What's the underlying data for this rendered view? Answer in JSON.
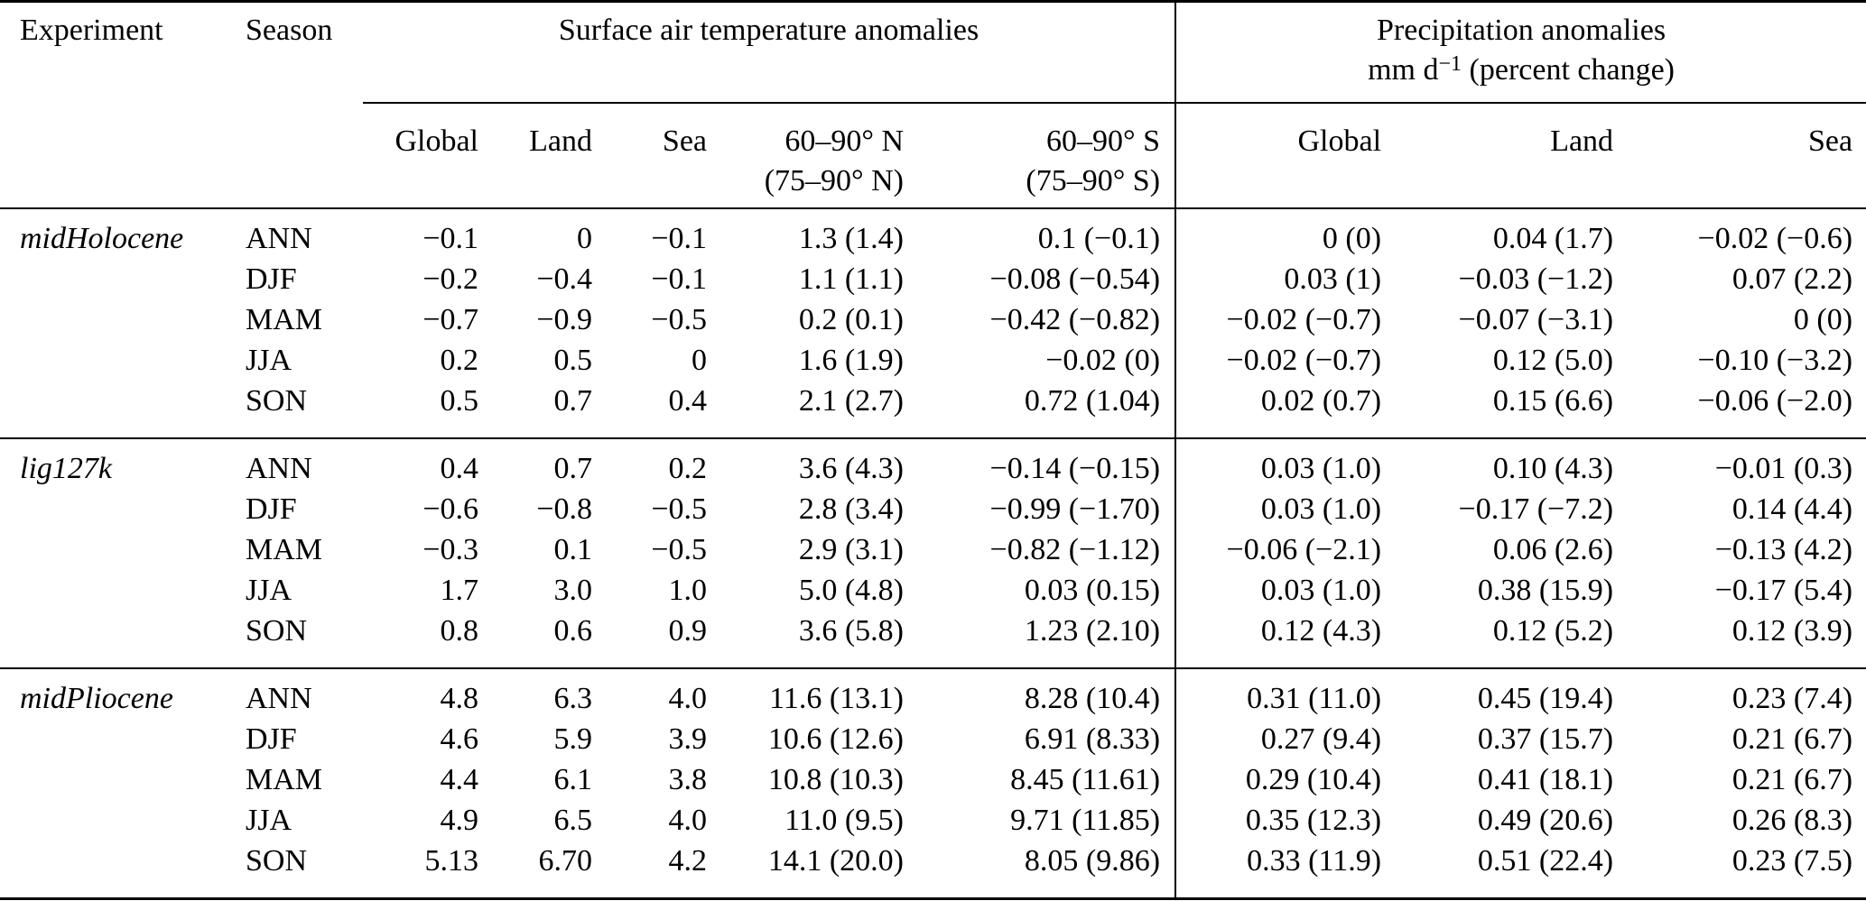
{
  "header": {
    "experiment": "Experiment",
    "season": "Season",
    "temp_group": "Surface air temperature anomalies",
    "precip_group": "Precipitation anomalies",
    "precip_unit_prefix": "mm d",
    "precip_unit_sup": "−1",
    "precip_unit_suffix": " (percent change)",
    "temp_cols": [
      {
        "line1": "Global",
        "line2": ""
      },
      {
        "line1": "Land",
        "line2": ""
      },
      {
        "line1": "Sea",
        "line2": ""
      },
      {
        "line1": "60–90° N",
        "line2": "(75–90° N)"
      },
      {
        "line1": "60–90° S",
        "line2": "(75–90° S)"
      }
    ],
    "precip_cols": [
      {
        "line1": "Global",
        "line2": ""
      },
      {
        "line1": "Land",
        "line2": ""
      },
      {
        "line1": "Sea",
        "line2": ""
      }
    ]
  },
  "sections": [
    {
      "experiment": "midHolocene",
      "rows": [
        {
          "season": "ANN",
          "temp": [
            "−0.1",
            "0",
            "−0.1",
            "1.3 (1.4)",
            "0.1 (−0.1)"
          ],
          "precip": [
            "0 (0)",
            "0.04 (1.7)",
            "−0.02 (−0.6)"
          ]
        },
        {
          "season": "DJF",
          "temp": [
            "−0.2",
            "−0.4",
            "−0.1",
            "1.1 (1.1)",
            "−0.08 (−0.54)"
          ],
          "precip": [
            "0.03 (1)",
            "−0.03 (−1.2)",
            "0.07 (2.2)"
          ]
        },
        {
          "season": "MAM",
          "temp": [
            "−0.7",
            "−0.9",
            "−0.5",
            "0.2 (0.1)",
            "−0.42 (−0.82)"
          ],
          "precip": [
            "−0.02 (−0.7)",
            "−0.07 (−3.1)",
            "0 (0)"
          ]
        },
        {
          "season": "JJA",
          "temp": [
            "0.2",
            "0.5",
            "0",
            "1.6 (1.9)",
            "−0.02 (0)"
          ],
          "precip": [
            "−0.02 (−0.7)",
            "0.12 (5.0)",
            "−0.10 (−3.2)"
          ]
        },
        {
          "season": "SON",
          "temp": [
            "0.5",
            "0.7",
            "0.4",
            "2.1 (2.7)",
            "0.72 (1.04)"
          ],
          "precip": [
            "0.02 (0.7)",
            "0.15 (6.6)",
            "−0.06 (−2.0)"
          ]
        }
      ]
    },
    {
      "experiment": "lig127k",
      "rows": [
        {
          "season": "ANN",
          "temp": [
            "0.4",
            "0.7",
            "0.2",
            "3.6 (4.3)",
            "−0.14 (−0.15)"
          ],
          "precip": [
            "0.03 (1.0)",
            "0.10 (4.3)",
            "−0.01 (0.3)"
          ]
        },
        {
          "season": "DJF",
          "temp": [
            "−0.6",
            "−0.8",
            "−0.5",
            "2.8 (3.4)",
            "−0.99 (−1.70)"
          ],
          "precip": [
            "0.03 (1.0)",
            "−0.17 (−7.2)",
            "0.14 (4.4)"
          ]
        },
        {
          "season": "MAM",
          "temp": [
            "−0.3",
            "0.1",
            "−0.5",
            "2.9 (3.1)",
            "−0.82 (−1.12)"
          ],
          "precip": [
            "−0.06 (−2.1)",
            "0.06 (2.6)",
            "−0.13 (4.2)"
          ]
        },
        {
          "season": "JJA",
          "temp": [
            "1.7",
            "3.0",
            "1.0",
            "5.0 (4.8)",
            "0.03 (0.15)"
          ],
          "precip": [
            "0.03 (1.0)",
            "0.38 (15.9)",
            "−0.17 (5.4)"
          ]
        },
        {
          "season": "SON",
          "temp": [
            "0.8",
            "0.6",
            "0.9",
            "3.6 (5.8)",
            "1.23 (2.10)"
          ],
          "precip": [
            "0.12 (4.3)",
            "0.12 (5.2)",
            "0.12 (3.9)"
          ]
        }
      ]
    },
    {
      "experiment": "midPliocene",
      "rows": [
        {
          "season": "ANN",
          "temp": [
            "4.8",
            "6.3",
            "4.0",
            "11.6 (13.1)",
            "8.28 (10.4)"
          ],
          "precip": [
            "0.31 (11.0)",
            "0.45 (19.4)",
            "0.23 (7.4)"
          ]
        },
        {
          "season": "DJF",
          "temp": [
            "4.6",
            "5.9",
            "3.9",
            "10.6 (12.6)",
            "6.91 (8.33)"
          ],
          "precip": [
            "0.27 (9.4)",
            "0.37 (15.7)",
            "0.21 (6.7)"
          ]
        },
        {
          "season": "MAM",
          "temp": [
            "4.4",
            "6.1",
            "3.8",
            "10.8 (10.3)",
            "8.45 (11.61)"
          ],
          "precip": [
            "0.29 (10.4)",
            "0.41 (18.1)",
            "0.21 (6.7)"
          ]
        },
        {
          "season": "JJA",
          "temp": [
            "4.9",
            "6.5",
            "4.0",
            "11.0 (9.5)",
            "9.71 (11.85)"
          ],
          "precip": [
            "0.35 (12.3)",
            "0.49 (20.6)",
            "0.26 (8.3)"
          ]
        },
        {
          "season": "SON",
          "temp": [
            "5.13",
            "6.70",
            "4.2",
            "14.1 (20.0)",
            "8.05 (9.86)"
          ],
          "precip": [
            "0.33 (11.9)",
            "0.51 (22.4)",
            "0.23 (7.5)"
          ]
        }
      ]
    }
  ]
}
